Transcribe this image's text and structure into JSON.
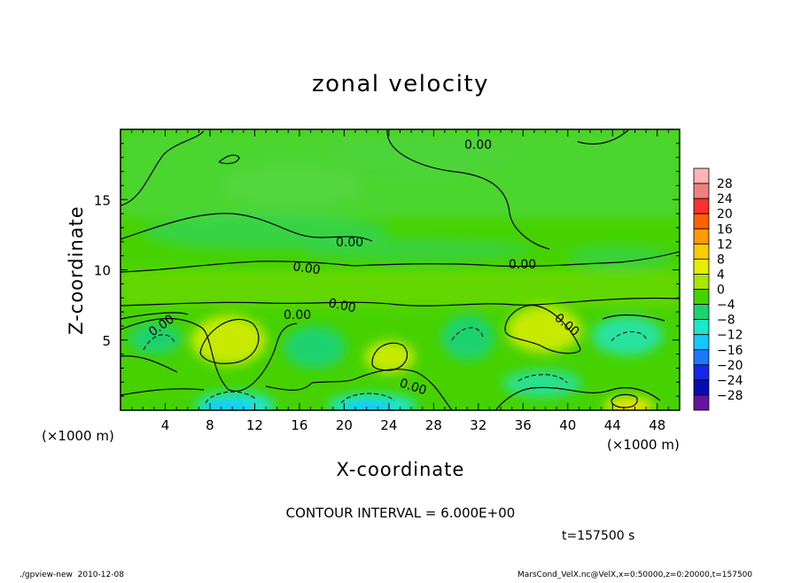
{
  "chart_data": {
    "type": "heatmap",
    "title": "zonal velocity",
    "xlabel": "X-coordinate",
    "ylabel": "Z-coordinate",
    "x_unit": "(×1000 m)",
    "x_unit_right": "(×1000 m)",
    "xlim": [
      0,
      50
    ],
    "ylim": [
      0,
      20
    ],
    "x_ticks": [
      4,
      8,
      12,
      16,
      20,
      24,
      28,
      32,
      36,
      40,
      44,
      48
    ],
    "y_ticks": [
      5,
      10,
      15
    ],
    "colorbar_levels": [
      "28",
      "24",
      "20",
      "16",
      "12",
      "8",
      "4",
      "0",
      "−4",
      "−8",
      "−12",
      "−16",
      "−20",
      "−24",
      "−28"
    ],
    "colorbar_colors": [
      "#f08080",
      "#ff3030",
      "#ff6000",
      "#ff9a00",
      "#ffcc00",
      "#e6ee00",
      "#aae600",
      "#46d200",
      "#1ed26e",
      "#1ee6c8",
      "#14c8ff",
      "#1e78ff",
      "#1428e6",
      "#0a0ab4",
      "#6414a0"
    ],
    "contour_labels": [
      "0.00",
      "0.00",
      "0.00",
      "0.00",
      "0.00",
      "0.00",
      "0.00",
      "0.00",
      "0.00"
    ],
    "contour_interval": "CONTOUR INTERVAL = 6.000E+00",
    "time": "t=157500 s"
  },
  "footer": {
    "left": "./gpview-new  2010-12-08",
    "right": "MarsCond_VelX.nc@VelX,x=0:50000,z=0:20000,t=157500"
  }
}
